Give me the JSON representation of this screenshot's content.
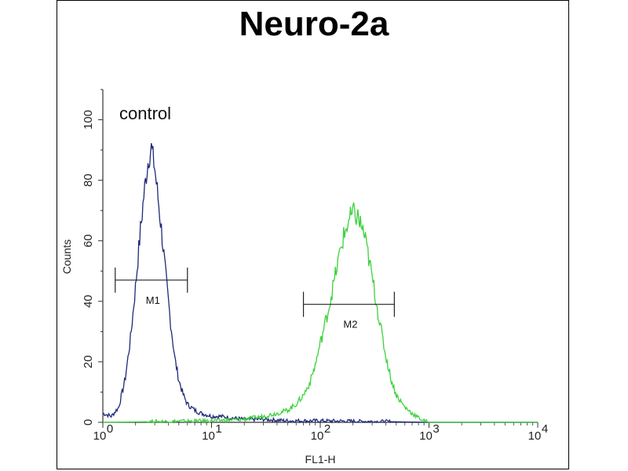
{
  "chart_data": {
    "type": "line",
    "title": "Neuro-2a",
    "xlabel": "FL1-H",
    "ylabel": "Counts",
    "x_scale": "log",
    "xlim": [
      1,
      10000
    ],
    "ylim": [
      0,
      110
    ],
    "x_ticks": [
      {
        "value": 1,
        "base": "10",
        "exp": "0"
      },
      {
        "value": 10,
        "base": "10",
        "exp": "1"
      },
      {
        "value": 100,
        "base": "10",
        "exp": "2"
      },
      {
        "value": 1000,
        "base": "10",
        "exp": "3"
      },
      {
        "value": 10000,
        "base": "10",
        "exp": "4"
      }
    ],
    "y_ticks": [
      0,
      20,
      40,
      60,
      80,
      100
    ],
    "annotation": "control",
    "grid": false,
    "series": [
      {
        "color": "#1f2a78",
        "x": [
          1,
          1.2,
          1.4,
          1.6,
          1.8,
          2.0,
          2.2,
          2.4,
          2.6,
          2.8,
          3.0,
          3.2,
          3.5,
          3.8,
          4.2,
          4.6,
          5.0,
          5.5,
          6.0,
          6.5,
          7.0,
          8.0,
          9.0,
          10,
          12,
          15,
          20,
          30,
          50,
          100,
          300,
          1000,
          10000
        ],
        "y": [
          3,
          2,
          5,
          14,
          28,
          45,
          62,
          76,
          86,
          91,
          84,
          75,
          62,
          48,
          33,
          21,
          14,
          9,
          6,
          5,
          4,
          3,
          2.5,
          2,
          2,
          1.5,
          1,
          1,
          0.5,
          0.5,
          0.3,
          0,
          0
        ]
      },
      {
        "color": "#3dd13d",
        "x": [
          1,
          10,
          20,
          30,
          40,
          50,
          60,
          70,
          80,
          90,
          100,
          120,
          140,
          160,
          180,
          200,
          220,
          250,
          280,
          320,
          360,
          400,
          450,
          500,
          600,
          700,
          800,
          900,
          1000,
          10000
        ],
        "y": [
          0,
          0.5,
          1,
          2,
          3,
          4,
          6,
          9,
          13,
          19,
          26,
          38,
          50,
          60,
          66,
          69,
          68,
          63,
          54,
          42,
          31,
          22,
          14,
          9,
          5,
          3,
          1.5,
          0.5,
          0,
          0
        ]
      }
    ],
    "markers": [
      {
        "label": "M1",
        "x_start": 1.3,
        "x_end": 6.0,
        "y": 47
      },
      {
        "label": "M2",
        "x_start": 70,
        "x_end": 480,
        "y": 39
      }
    ]
  }
}
